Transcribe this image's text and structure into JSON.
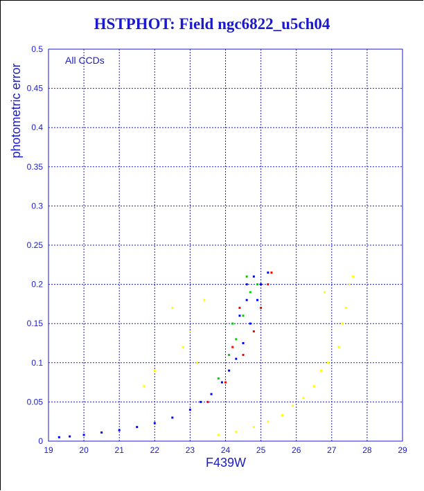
{
  "chart_data": {
    "type": "scatter",
    "title": "HSTPHOT: Field ngc6822_u5ch04",
    "xlabel": "F439W",
    "ylabel": "photometric error",
    "annotation": "All CCDs",
    "xlim": [
      19,
      29
    ],
    "ylim": [
      0,
      0.5
    ],
    "xticks": [
      "19",
      "20",
      "21",
      "22",
      "23",
      "24",
      "25",
      "26",
      "27",
      "28",
      "29"
    ],
    "yticks": [
      "0",
      "0.05",
      "0.1",
      "0.15",
      "0.2",
      "0.25",
      "0.3",
      "0.35",
      "0.4",
      "0.45",
      "0.5"
    ],
    "grid": true,
    "series": [
      {
        "color": "#0000ff",
        "points": [
          [
            19.3,
            0.005
          ],
          [
            19.6,
            0.006
          ],
          [
            20.0,
            0.008
          ],
          [
            20.5,
            0.011
          ],
          [
            21.0,
            0.014
          ],
          [
            21.5,
            0.018
          ],
          [
            22.0,
            0.023
          ],
          [
            22.5,
            0.03
          ],
          [
            23.0,
            0.04
          ],
          [
            23.3,
            0.05
          ],
          [
            23.6,
            0.06
          ],
          [
            23.9,
            0.075
          ],
          [
            24.1,
            0.09
          ],
          [
            24.3,
            0.105
          ],
          [
            24.5,
            0.125
          ],
          [
            24.7,
            0.15
          ],
          [
            24.9,
            0.18
          ],
          [
            25.0,
            0.2
          ],
          [
            25.2,
            0.215
          ],
          [
            24.6,
            0.2
          ],
          [
            24.8,
            0.21
          ],
          [
            24.4,
            0.16
          ],
          [
            24.6,
            0.18
          ]
        ]
      },
      {
        "color": "#ff0000",
        "points": [
          [
            23.5,
            0.05
          ],
          [
            24.0,
            0.075
          ],
          [
            24.5,
            0.11
          ],
          [
            24.8,
            0.14
          ],
          [
            25.0,
            0.17
          ],
          [
            25.2,
            0.2
          ],
          [
            25.3,
            0.215
          ],
          [
            24.2,
            0.12
          ],
          [
            24.4,
            0.17
          ]
        ]
      },
      {
        "color": "#00cc00",
        "points": [
          [
            23.8,
            0.08
          ],
          [
            24.1,
            0.11
          ],
          [
            24.3,
            0.13
          ],
          [
            24.5,
            0.16
          ],
          [
            24.7,
            0.19
          ],
          [
            24.9,
            0.2
          ],
          [
            24.6,
            0.21
          ],
          [
            24.2,
            0.15
          ]
        ]
      },
      {
        "color": "#ffff00",
        "points": [
          [
            23.8,
            0.008
          ],
          [
            24.3,
            0.012
          ],
          [
            24.8,
            0.018
          ],
          [
            25.2,
            0.025
          ],
          [
            25.6,
            0.033
          ],
          [
            25.9,
            0.045
          ],
          [
            26.2,
            0.055
          ],
          [
            26.5,
            0.07
          ],
          [
            26.7,
            0.09
          ],
          [
            26.9,
            0.1
          ],
          [
            27.2,
            0.12
          ],
          [
            27.4,
            0.17
          ],
          [
            27.5,
            0.2
          ],
          [
            27.6,
            0.21
          ],
          [
            27.3,
            0.15
          ],
          [
            22.5,
            0.17
          ],
          [
            22.8,
            0.12
          ],
          [
            23.0,
            0.14
          ],
          [
            23.4,
            0.18
          ],
          [
            23.2,
            0.1
          ],
          [
            22.0,
            0.09
          ],
          [
            21.7,
            0.07
          ],
          [
            26.8,
            0.19
          ]
        ]
      }
    ]
  }
}
